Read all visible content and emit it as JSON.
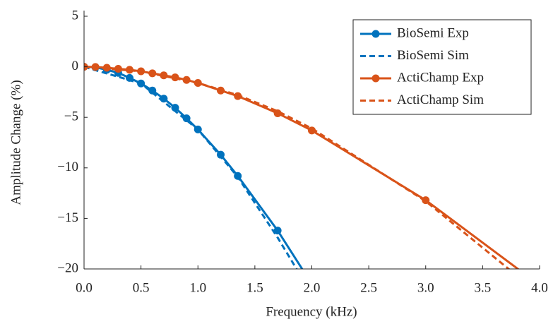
{
  "chart_data": {
    "type": "line",
    "xlabel": "Frequency (kHz)",
    "ylabel": "Amplitude Change (%)",
    "xlim": [
      0,
      4
    ],
    "ylim": [
      -20,
      5
    ],
    "xticks": [
      {
        "value": 0,
        "label": "0.0"
      },
      0.5,
      {
        "value": 1,
        "label": "1.0"
      },
      1.5,
      {
        "value": 2,
        "label": "2.0"
      },
      2.5,
      {
        "value": 3,
        "label": "3.0"
      },
      3.5,
      {
        "value": 4,
        "label": "4.0"
      }
    ],
    "yticks": [
      {
        "value": -20,
        "label": "−20"
      },
      {
        "value": -15,
        "label": "−15"
      },
      {
        "value": -10,
        "label": "−10"
      },
      {
        "value": -5,
        "label": "−5"
      },
      0,
      5
    ],
    "legend": "upper right",
    "series": [
      {
        "name": "BioSemi Exp",
        "color": "#0072bd",
        "style": "solid",
        "markers": true,
        "x": [
          0,
          0.1,
          0.2,
          0.3,
          0.4,
          0.5,
          0.6,
          0.7,
          0.8,
          0.9,
          1.0,
          1.2,
          1.35,
          1.7,
          2.0
        ],
        "values": [
          0,
          -0.05,
          -0.3,
          -0.6,
          -1.1,
          -1.65,
          -2.35,
          -3.15,
          -4.05,
          -5.1,
          -6.2,
          -8.7,
          -10.8,
          -16.2,
          -21.5
        ]
      },
      {
        "name": "BioSemi Sim",
        "color": "#0072bd",
        "style": "dashed",
        "markers": false,
        "x": [
          0,
          0.5,
          1.0,
          1.35,
          1.7,
          2.0
        ],
        "values": [
          0,
          -1.65,
          -6.2,
          -10.9,
          -16.9,
          -22.5
        ]
      },
      {
        "name": "ActiChamp Exp",
        "color": "#d95319",
        "style": "solid",
        "markers": true,
        "x": [
          0,
          0.1,
          0.2,
          0.3,
          0.4,
          0.5,
          0.6,
          0.7,
          0.8,
          0.9,
          1.0,
          1.2,
          1.35,
          1.7,
          2.0,
          3.0,
          4.0
        ],
        "values": [
          0,
          -0.02,
          -0.1,
          -0.2,
          -0.3,
          -0.45,
          -0.65,
          -0.85,
          -1.05,
          -1.3,
          -1.6,
          -2.35,
          -2.9,
          -4.6,
          -6.3,
          -13.2,
          -21.6
        ]
      },
      {
        "name": "ActiChamp Sim",
        "color": "#d95319",
        "style": "dashed",
        "markers": false,
        "x": [
          0,
          0.5,
          1.0,
          1.35,
          1.7,
          2.0,
          3.0,
          4.0
        ],
        "values": [
          0,
          -0.45,
          -1.6,
          -2.8,
          -4.4,
          -6.1,
          -13.3,
          -22.5
        ]
      }
    ]
  }
}
